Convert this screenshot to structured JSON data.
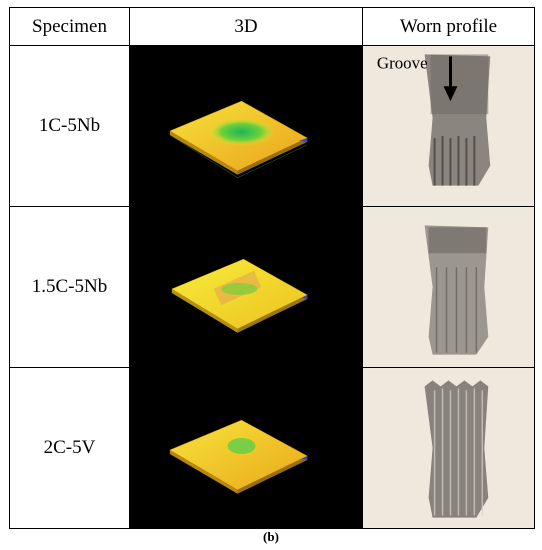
{
  "table": {
    "headers": {
      "specimen": "Specimen",
      "threed": "3D",
      "worn": "Worn profile"
    },
    "rows": [
      {
        "specimen": "1C-5Nb"
      },
      {
        "specimen": "1.5C-5Nb"
      },
      {
        "specimen": "2C-5V"
      }
    ]
  },
  "annotation": {
    "groove": "Groove"
  },
  "caption": "(b)"
}
